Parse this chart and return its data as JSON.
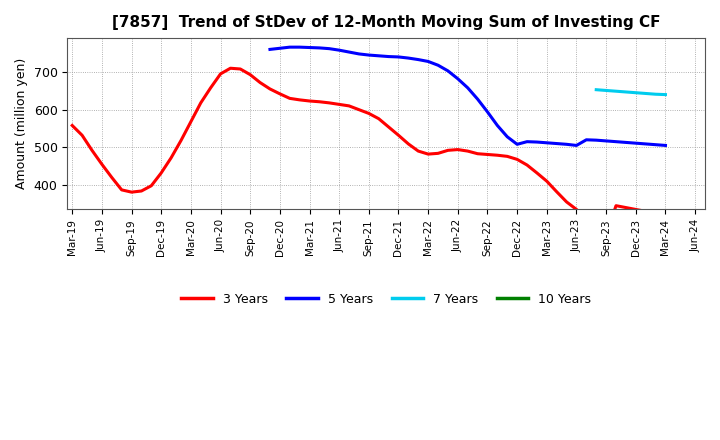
{
  "title": "[7857]  Trend of StDev of 12-Month Moving Sum of Investing CF",
  "ylabel": "Amount (million yen)",
  "ylim": [
    335,
    790
  ],
  "yticks": [
    400,
    500,
    600,
    700
  ],
  "background_color": "#ffffff",
  "grid_color": "#999999",
  "series": {
    "3years": {
      "color": "#ff0000",
      "label": "3 Years",
      "x": [
        0,
        1,
        2,
        3,
        4,
        5,
        6,
        7,
        8,
        9,
        10,
        11,
        12,
        13,
        14,
        15,
        16,
        17,
        18,
        19,
        20,
        21,
        22,
        23,
        24,
        25,
        26,
        27,
        28,
        29,
        30,
        31,
        32,
        33,
        34,
        35,
        36,
        37,
        38,
        39,
        40,
        41,
        42,
        43,
        44,
        45,
        46,
        47,
        48,
        49,
        50,
        51,
        52,
        53,
        54,
        55,
        56,
        57,
        58,
        59,
        60
      ],
      "y": [
        558,
        532,
        492,
        455,
        420,
        387,
        381,
        384,
        398,
        432,
        472,
        518,
        568,
        618,
        658,
        695,
        710,
        708,
        693,
        672,
        655,
        642,
        630,
        626,
        623,
        621,
        618,
        614,
        610,
        600,
        590,
        576,
        554,
        532,
        509,
        490,
        482,
        484,
        492,
        494,
        490,
        483,
        481,
        479,
        476,
        468,
        453,
        432,
        410,
        382,
        355,
        335,
        310,
        290,
        268,
        345,
        340,
        335,
        330,
        325,
        330
      ]
    },
    "5years": {
      "color": "#0000ff",
      "label": "5 Years",
      "x": [
        20,
        21,
        22,
        23,
        24,
        25,
        26,
        27,
        28,
        29,
        30,
        31,
        32,
        33,
        34,
        35,
        36,
        37,
        38,
        39,
        40,
        41,
        42,
        43,
        44,
        45,
        46,
        47,
        48,
        49,
        50,
        51,
        52,
        53,
        54,
        55,
        56,
        57,
        58,
        59,
        60
      ],
      "y": [
        760,
        763,
        766,
        766,
        765,
        764,
        762,
        758,
        753,
        748,
        745,
        743,
        741,
        740,
        737,
        733,
        728,
        718,
        703,
        682,
        658,
        628,
        594,
        558,
        528,
        508,
        515,
        514,
        512,
        510,
        508,
        505,
        520,
        519,
        517,
        515,
        513,
        511,
        509,
        507,
        505
      ]
    },
    "7years": {
      "color": "#00ccee",
      "label": "7 Years",
      "x": [
        53,
        54,
        55,
        56,
        57,
        58,
        59,
        60
      ],
      "y": [
        653,
        651,
        649,
        647,
        645,
        643,
        641,
        640
      ]
    },
    "10years": {
      "color": "#008000",
      "label": "10 Years",
      "x": [],
      "y": []
    }
  },
  "xtick_labels": [
    "Mar-19",
    "Jun-19",
    "Sep-19",
    "Dec-19",
    "Mar-20",
    "Jun-20",
    "Sep-20",
    "Dec-20",
    "Mar-21",
    "Jun-21",
    "Sep-21",
    "Dec-21",
    "Mar-22",
    "Jun-22",
    "Sep-22",
    "Dec-22",
    "Mar-23",
    "Jun-23",
    "Sep-23",
    "Dec-23",
    "Mar-24",
    "Jun-24"
  ],
  "xtick_positions": [
    0,
    3,
    6,
    9,
    12,
    15,
    18,
    21,
    24,
    27,
    30,
    33,
    36,
    39,
    42,
    45,
    48,
    51,
    54,
    57,
    60,
    63
  ]
}
